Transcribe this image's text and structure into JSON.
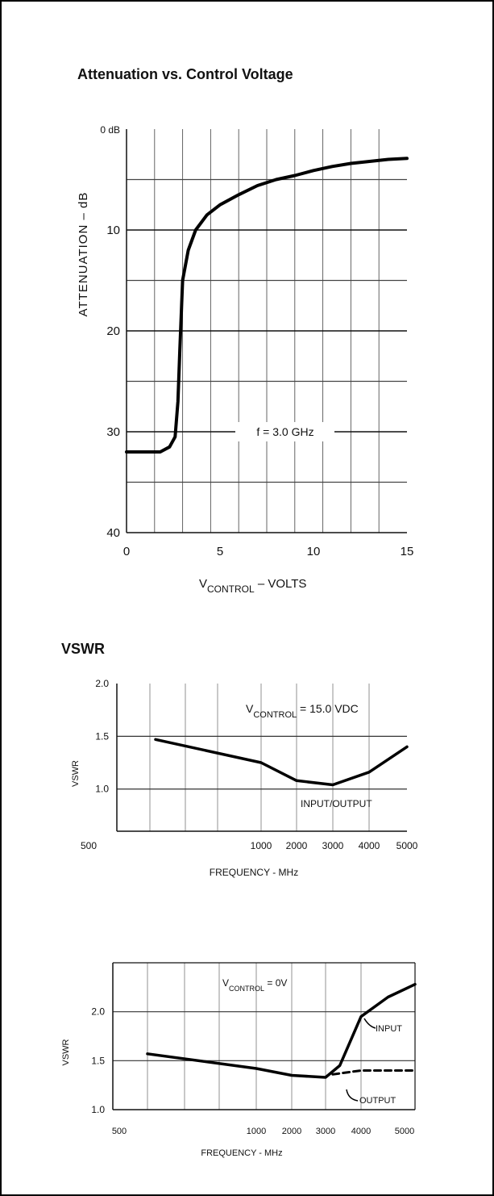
{
  "sections": {
    "attenuation_title": "Attenuation vs. Control Voltage",
    "vswr_title": "VSWR"
  },
  "chart_data": [
    {
      "type": "line",
      "title": "Attenuation vs. Control Voltage",
      "xlabel": "VCONTROL – VOLTS",
      "xlabel_main": "V",
      "xlabel_sub": "CONTROL",
      "xlabel_rest": " – VOLTS",
      "ylabel": "ATTENUATION – dB",
      "xlim": [
        0,
        15
      ],
      "ylim": [
        0,
        40
      ],
      "y_inverted": true,
      "x_ticks": [
        "0",
        "5",
        "10",
        "15"
      ],
      "y_ticks": [
        "0 dB",
        "10",
        "20",
        "30",
        "40"
      ],
      "annotation": "f = 3.0 GHz",
      "grid": true,
      "series": [
        {
          "x": [
            0,
            1.8,
            2.3,
            2.6,
            2.75,
            2.85,
            3.0,
            3.3,
            3.7,
            4.3,
            5.0,
            6.0,
            7.0,
            8.0,
            9.0,
            10.0,
            11.0,
            12.0,
            13.0,
            14.0,
            15.0
          ],
          "y": [
            32,
            32,
            31.5,
            30.5,
            27,
            22,
            15,
            12,
            10,
            8.5,
            7.5,
            6.5,
            5.6,
            5.0,
            4.6,
            4.1,
            3.7,
            3.4,
            3.2,
            3.0,
            2.9
          ]
        }
      ]
    },
    {
      "type": "line",
      "title": "",
      "xlabel": "FREQUENCY - MHz",
      "ylabel": "VSWR",
      "xlim": [
        500,
        5000
      ],
      "ylim": [
        0.6,
        2.0
      ],
      "x_ticks": [
        "500",
        "1000",
        "2000",
        "3000",
        "4000",
        "5000"
      ],
      "y_ticks": [
        "2.0",
        "1.5",
        "1.0"
      ],
      "annotation_main": "V",
      "annotation_sub": "CONTROL",
      "annotation_rest": " = 15.0 VDC",
      "series_label": "INPUT/OUTPUT",
      "grid": true,
      "series": [
        {
          "x": [
            500,
            1000,
            2000,
            3000,
            4000,
            5000
          ],
          "y": [
            1.47,
            1.25,
            1.08,
            1.04,
            1.16,
            1.4
          ]
        }
      ]
    },
    {
      "type": "line",
      "title": "",
      "xlabel": "FREQUENCY - MHz",
      "ylabel": "VSWR",
      "xlim": [
        500,
        5000
      ],
      "ylim": [
        1.0,
        2.5
      ],
      "x_ticks": [
        "500",
        "1000",
        "2000",
        "3000",
        "4000",
        "5000"
      ],
      "y_ticks": [
        "2.0",
        "1.5",
        "1.0"
      ],
      "annotation_main": "V",
      "annotation_sub": "CONTROL",
      "annotation_rest": " = 0V",
      "grid": true,
      "series": [
        {
          "name": "INPUT",
          "style": "solid",
          "x": [
            500,
            1000,
            2000,
            3000,
            3400,
            4000,
            4500,
            5000
          ],
          "y": [
            1.57,
            1.42,
            1.35,
            1.33,
            1.45,
            1.95,
            2.15,
            2.28
          ]
        },
        {
          "name": "OUTPUT",
          "style": "dashed",
          "x": [
            3200,
            4000,
            5000
          ],
          "y": [
            1.36,
            1.4,
            1.4
          ]
        }
      ]
    }
  ]
}
